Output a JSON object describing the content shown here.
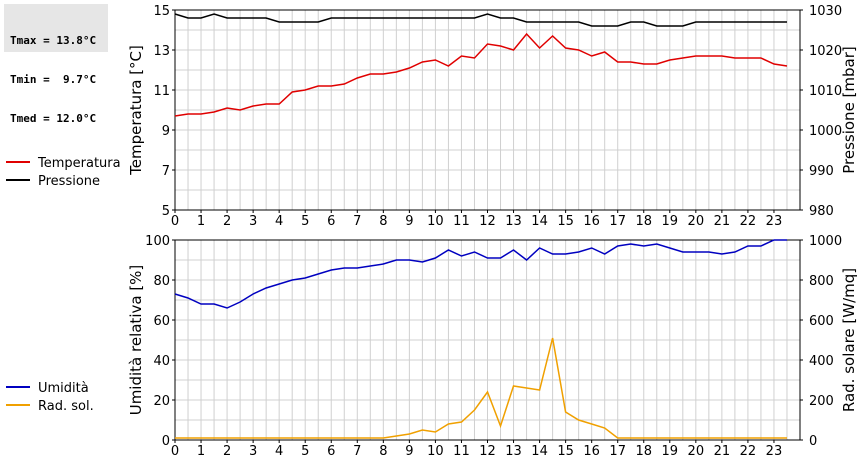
{
  "stats": {
    "tmax": "Tmax = 13.8°C",
    "tmin": "Tmin =  9.7°C",
    "tmed": "Tmed = 12.0°C"
  },
  "chart_data": [
    {
      "type": "line",
      "xlim": [
        0,
        24
      ],
      "x_ticks": [
        0,
        1,
        2,
        3,
        4,
        5,
        6,
        7,
        8,
        9,
        10,
        11,
        12,
        13,
        14,
        15,
        16,
        17,
        18,
        19,
        20,
        21,
        22,
        23
      ],
      "grid": true,
      "legend_placement": "left",
      "left_axis": {
        "label": "Temperatura [°C]",
        "ylim": [
          5,
          15
        ],
        "ticks": [
          5,
          7,
          9,
          11,
          13,
          15
        ]
      },
      "right_axis": {
        "label": "Pressione [mbar]",
        "ylim": [
          980,
          1030
        ],
        "ticks": [
          980,
          990,
          1000,
          1010,
          1020,
          1030
        ]
      },
      "series": [
        {
          "name": "Temperatura",
          "axis": "left",
          "color": "#e00000",
          "x": [
            0,
            0.5,
            1,
            1.5,
            2,
            2.5,
            3,
            3.5,
            4,
            4.5,
            5,
            5.5,
            6,
            6.5,
            7,
            7.5,
            8,
            8.5,
            9,
            9.5,
            10,
            10.5,
            11,
            11.5,
            12,
            12.5,
            13,
            13.5,
            14,
            14.5,
            15,
            15.5,
            16,
            16.5,
            17,
            17.5,
            18,
            18.5,
            19,
            19.5,
            20,
            20.5,
            21,
            21.5,
            22,
            22.5,
            23,
            23.5
          ],
          "values": [
            9.7,
            9.8,
            9.8,
            9.9,
            10.1,
            10.0,
            10.2,
            10.3,
            10.3,
            10.9,
            11.0,
            11.2,
            11.2,
            11.3,
            11.6,
            11.8,
            11.8,
            11.9,
            12.1,
            12.4,
            12.5,
            12.2,
            12.7,
            12.6,
            13.3,
            13.2,
            13.0,
            13.8,
            13.1,
            13.7,
            13.1,
            13.0,
            12.7,
            12.9,
            12.4,
            12.4,
            12.3,
            12.3,
            12.5,
            12.6,
            12.7,
            12.7,
            12.7,
            12.6,
            12.6,
            12.6,
            12.3,
            12.2
          ]
        },
        {
          "name": "Pressione",
          "axis": "right",
          "color": "#000000",
          "x": [
            0,
            0.5,
            1,
            1.5,
            2,
            2.5,
            3,
            3.5,
            4,
            4.5,
            5,
            5.5,
            6,
            6.5,
            7,
            7.5,
            8,
            8.5,
            9,
            9.5,
            10,
            10.5,
            11,
            11.5,
            12,
            12.5,
            13,
            13.5,
            14,
            14.5,
            15,
            15.5,
            16,
            16.5,
            17,
            17.5,
            18,
            18.5,
            19,
            19.5,
            20,
            20.5,
            21,
            21.5,
            22,
            22.5,
            23,
            23.5
          ],
          "values": [
            1029,
            1028,
            1028,
            1029,
            1028,
            1028,
            1028,
            1028,
            1027,
            1027,
            1027,
            1027,
            1028,
            1028,
            1028,
            1028,
            1028,
            1028,
            1028,
            1028,
            1028,
            1028,
            1028,
            1028,
            1029,
            1028,
            1028,
            1027,
            1027,
            1027,
            1027,
            1027,
            1026,
            1026,
            1026,
            1027,
            1027,
            1026,
            1026,
            1026,
            1027,
            1027,
            1027,
            1027,
            1027,
            1027,
            1027,
            1027
          ]
        }
      ]
    },
    {
      "type": "line",
      "xlim": [
        0,
        24
      ],
      "x_ticks": [
        0,
        1,
        2,
        3,
        4,
        5,
        6,
        7,
        8,
        9,
        10,
        11,
        12,
        13,
        14,
        15,
        16,
        17,
        18,
        19,
        20,
        21,
        22,
        23
      ],
      "grid": true,
      "legend_placement": "left",
      "left_axis": {
        "label": "Umidità relativa [%]",
        "ylim": [
          0,
          100
        ],
        "ticks": [
          0,
          20,
          40,
          60,
          80,
          100
        ]
      },
      "right_axis": {
        "label": "Rad. solare [W/mq]",
        "ylim": [
          0,
          1000
        ],
        "ticks": [
          0,
          200,
          400,
          600,
          800,
          1000
        ]
      },
      "series": [
        {
          "name": "Umidità",
          "axis": "left",
          "color": "#0000c0",
          "x": [
            0,
            0.5,
            1,
            1.5,
            2,
            2.5,
            3,
            3.5,
            4,
            4.5,
            5,
            5.5,
            6,
            6.5,
            7,
            7.5,
            8,
            8.5,
            9,
            9.5,
            10,
            10.5,
            11,
            11.5,
            12,
            12.5,
            13,
            13.5,
            14,
            14.5,
            15,
            15.5,
            16,
            16.5,
            17,
            17.5,
            18,
            18.5,
            19,
            19.5,
            20,
            20.5,
            21,
            21.5,
            22,
            22.5,
            23,
            23.5
          ],
          "values": [
            73,
            71,
            68,
            68,
            66,
            69,
            73,
            76,
            78,
            80,
            81,
            83,
            85,
            86,
            86,
            87,
            88,
            90,
            90,
            89,
            91,
            95,
            92,
            94,
            91,
            91,
            95,
            90,
            96,
            93,
            93,
            94,
            96,
            93,
            97,
            98,
            97,
            98,
            96,
            94,
            94,
            94,
            93,
            94,
            97,
            97,
            100,
            100
          ]
        },
        {
          "name": "Rad. sol.",
          "axis": "right",
          "color": "#f0a000",
          "x": [
            0,
            0.5,
            1,
            1.5,
            2,
            2.5,
            3,
            3.5,
            4,
            4.5,
            5,
            5.5,
            6,
            6.5,
            7,
            7.5,
            8,
            8.5,
            9,
            9.5,
            10,
            10.5,
            11,
            11.5,
            12,
            12.5,
            13,
            13.5,
            14,
            14.5,
            15,
            15.5,
            16,
            16.5,
            17,
            17.5,
            18,
            18.5,
            19,
            19.5,
            20,
            20.5,
            21,
            21.5,
            22,
            22.5,
            23,
            23.5
          ],
          "values": [
            10,
            10,
            10,
            10,
            10,
            10,
            10,
            10,
            10,
            10,
            10,
            10,
            10,
            10,
            10,
            10,
            10,
            20,
            30,
            50,
            40,
            80,
            90,
            150,
            240,
            70,
            270,
            260,
            250,
            510,
            140,
            100,
            80,
            60,
            10,
            10,
            10,
            10,
            10,
            10,
            10,
            10,
            10,
            10,
            10,
            10,
            10,
            10
          ]
        }
      ]
    }
  ]
}
